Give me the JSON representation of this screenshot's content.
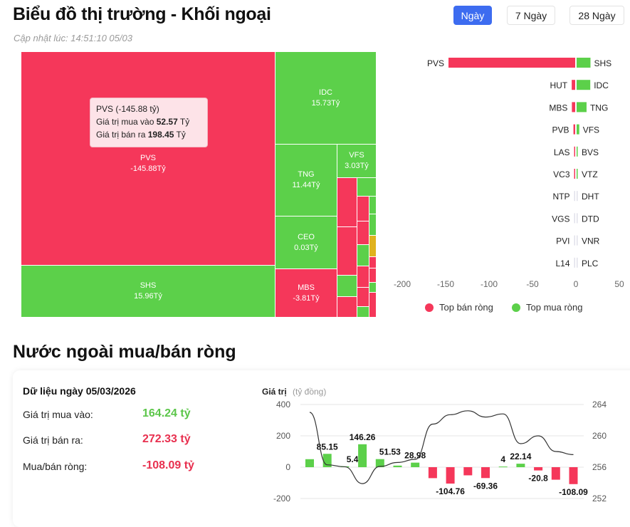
{
  "header": {
    "title": "Biểu đồ thị trường - Khối ngoại",
    "updated": "Cập nhật lúc: 14:51:10 05/03",
    "tabs": [
      {
        "label": "Ngày",
        "active": true
      },
      {
        "label": "7 Ngày",
        "active": false
      },
      {
        "label": "28 Ngày",
        "active": false
      }
    ]
  },
  "colors": {
    "buy": "#5cd04a",
    "sell": "#f5375a",
    "accent": "#3d6cf0"
  },
  "treemap": {
    "cells": [
      {
        "name": "PVS",
        "value": "-145.88Tỷ"
      },
      {
        "name": "SHS",
        "value": "15.96Tỷ"
      },
      {
        "name": "IDC",
        "value": "15.73Tỷ"
      },
      {
        "name": "TNG",
        "value": "11.44Tỷ"
      },
      {
        "name": "CEO",
        "value": "0.03Tỷ"
      },
      {
        "name": "MBS",
        "value": "-3.81Tỷ"
      },
      {
        "name": "VFS",
        "value": "3.03Tỷ"
      }
    ],
    "tooltip": {
      "title": "PVS (-145.88 tỷ)",
      "buy_label": "Giá trị mua vào",
      "buy_value": "52.57",
      "buy_unit": "Tỷ",
      "sell_label": "Giá trị bán ra",
      "sell_value": "198.45",
      "sell_unit": "Tỷ"
    }
  },
  "chart_data": [
    {
      "type": "bar",
      "title": "Top mua/bán ròng",
      "orientation": "horizontal",
      "sell": {
        "labels": [
          "PVS",
          "HUT",
          "MBS",
          "PVB",
          "LAS",
          "VC3",
          "NTP",
          "VGS",
          "PVI",
          "L14"
        ],
        "values": [
          -145.88,
          -4,
          -3.81,
          -2,
          -0.5,
          -0.4,
          -0.1,
          -0.1,
          -0.1,
          -0.1
        ]
      },
      "buy": {
        "labels": [
          "SHS",
          "IDC",
          "TNG",
          "VFS",
          "BVS",
          "VTZ",
          "DHT",
          "DTD",
          "VNR",
          "PLC"
        ],
        "values": [
          15.96,
          15.73,
          11.44,
          3.03,
          0.3,
          0.2,
          0.1,
          0.1,
          0.1,
          0.1
        ]
      },
      "xticks": [
        "-200",
        "-150",
        "-100",
        "-50",
        "0",
        "50"
      ],
      "xlim": [
        -200,
        50
      ],
      "legend": [
        {
          "label": "Top bán ròng",
          "color": "#f5375a"
        },
        {
          "label": "Top mua ròng",
          "color": "#5cd04a"
        }
      ]
    },
    {
      "type": "bar+line",
      "ylabel": "Giá trị",
      "yunit": "(tỷ đồng)",
      "values": [
        51,
        85.15,
        5.44,
        146.26,
        51.53,
        10,
        28.98,
        -70,
        -104.76,
        -52,
        -69.36,
        4,
        22.14,
        -20.8,
        -80,
        -108.09
      ],
      "labels": [
        null,
        "85.15",
        "5.44",
        "146.26",
        "51.53",
        null,
        "28.98",
        null,
        "-104.76",
        null,
        "-69.36",
        "4",
        "22.14",
        "-20.8",
        null,
        "-108.09"
      ],
      "line": [
        263.0,
        256.3,
        256.05,
        253.9,
        256.1,
        256.6,
        257.0,
        261.5,
        262.7,
        263.2,
        262.4,
        262.8,
        259.0,
        260.0,
        258.0,
        257.6
      ],
      "yticks": [
        "400",
        "200",
        "0",
        "-200"
      ],
      "ylim": [
        -200,
        400
      ],
      "y2ticks": [
        "264",
        "260",
        "256",
        "252"
      ],
      "y2lim": [
        252,
        264
      ]
    }
  ],
  "summary": {
    "title": "Nước ngoài mua/bán ròng",
    "date": "Dữ liệu ngày 05/03/2026",
    "buy_label": "Giá trị mua vào:",
    "buy_value": "164.24 tỷ",
    "sell_label": "Giá trị bán ra:",
    "sell_value": "272.33 tỷ",
    "net_label": "Mua/bán ròng:",
    "net_value": "-108.09 tỷ"
  }
}
